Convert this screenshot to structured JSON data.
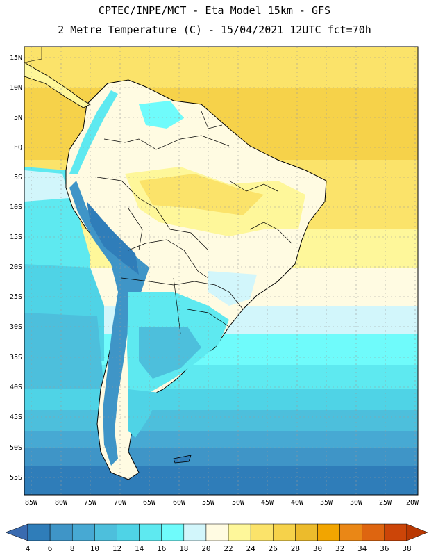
{
  "title_line1": "CPTEC/INPE/MCT -  Eta Model 15km - GFS",
  "title_line2": "2 Metre Temperature (C) - 15/04/2021 12UTC fct=70h",
  "lat_labels": [
    "15N",
    "10N",
    "5N",
    "EQ",
    "5S",
    "10S",
    "15S",
    "20S",
    "25S",
    "30S",
    "35S",
    "40S",
    "45S",
    "50S",
    "55S"
  ],
  "lon_labels": [
    "85W",
    "80W",
    "75W",
    "70W",
    "65W",
    "60W",
    "55W",
    "50W",
    "45W",
    "40W",
    "35W",
    "30W",
    "25W",
    "20W"
  ],
  "colorbar": {
    "labels": [
      "4",
      "6",
      "8",
      "10",
      "12",
      "14",
      "16",
      "18",
      "20",
      "22",
      "24",
      "26",
      "28",
      "30",
      "32",
      "34",
      "36",
      "38"
    ],
    "colors": [
      "#3a6bb0",
      "#2f7db9",
      "#3f95c7",
      "#47a9d3",
      "#4dbfdc",
      "#4fd3e6",
      "#5ee9f0",
      "#6ffbfb",
      "#d2f6fb",
      "#fffbe2",
      "#fef79a",
      "#fbe36a",
      "#f6d24a",
      "#ecbb2c",
      "#f2a500",
      "#ea8716",
      "#de6510",
      "#cc4508",
      "#b93802"
    ]
  }
}
